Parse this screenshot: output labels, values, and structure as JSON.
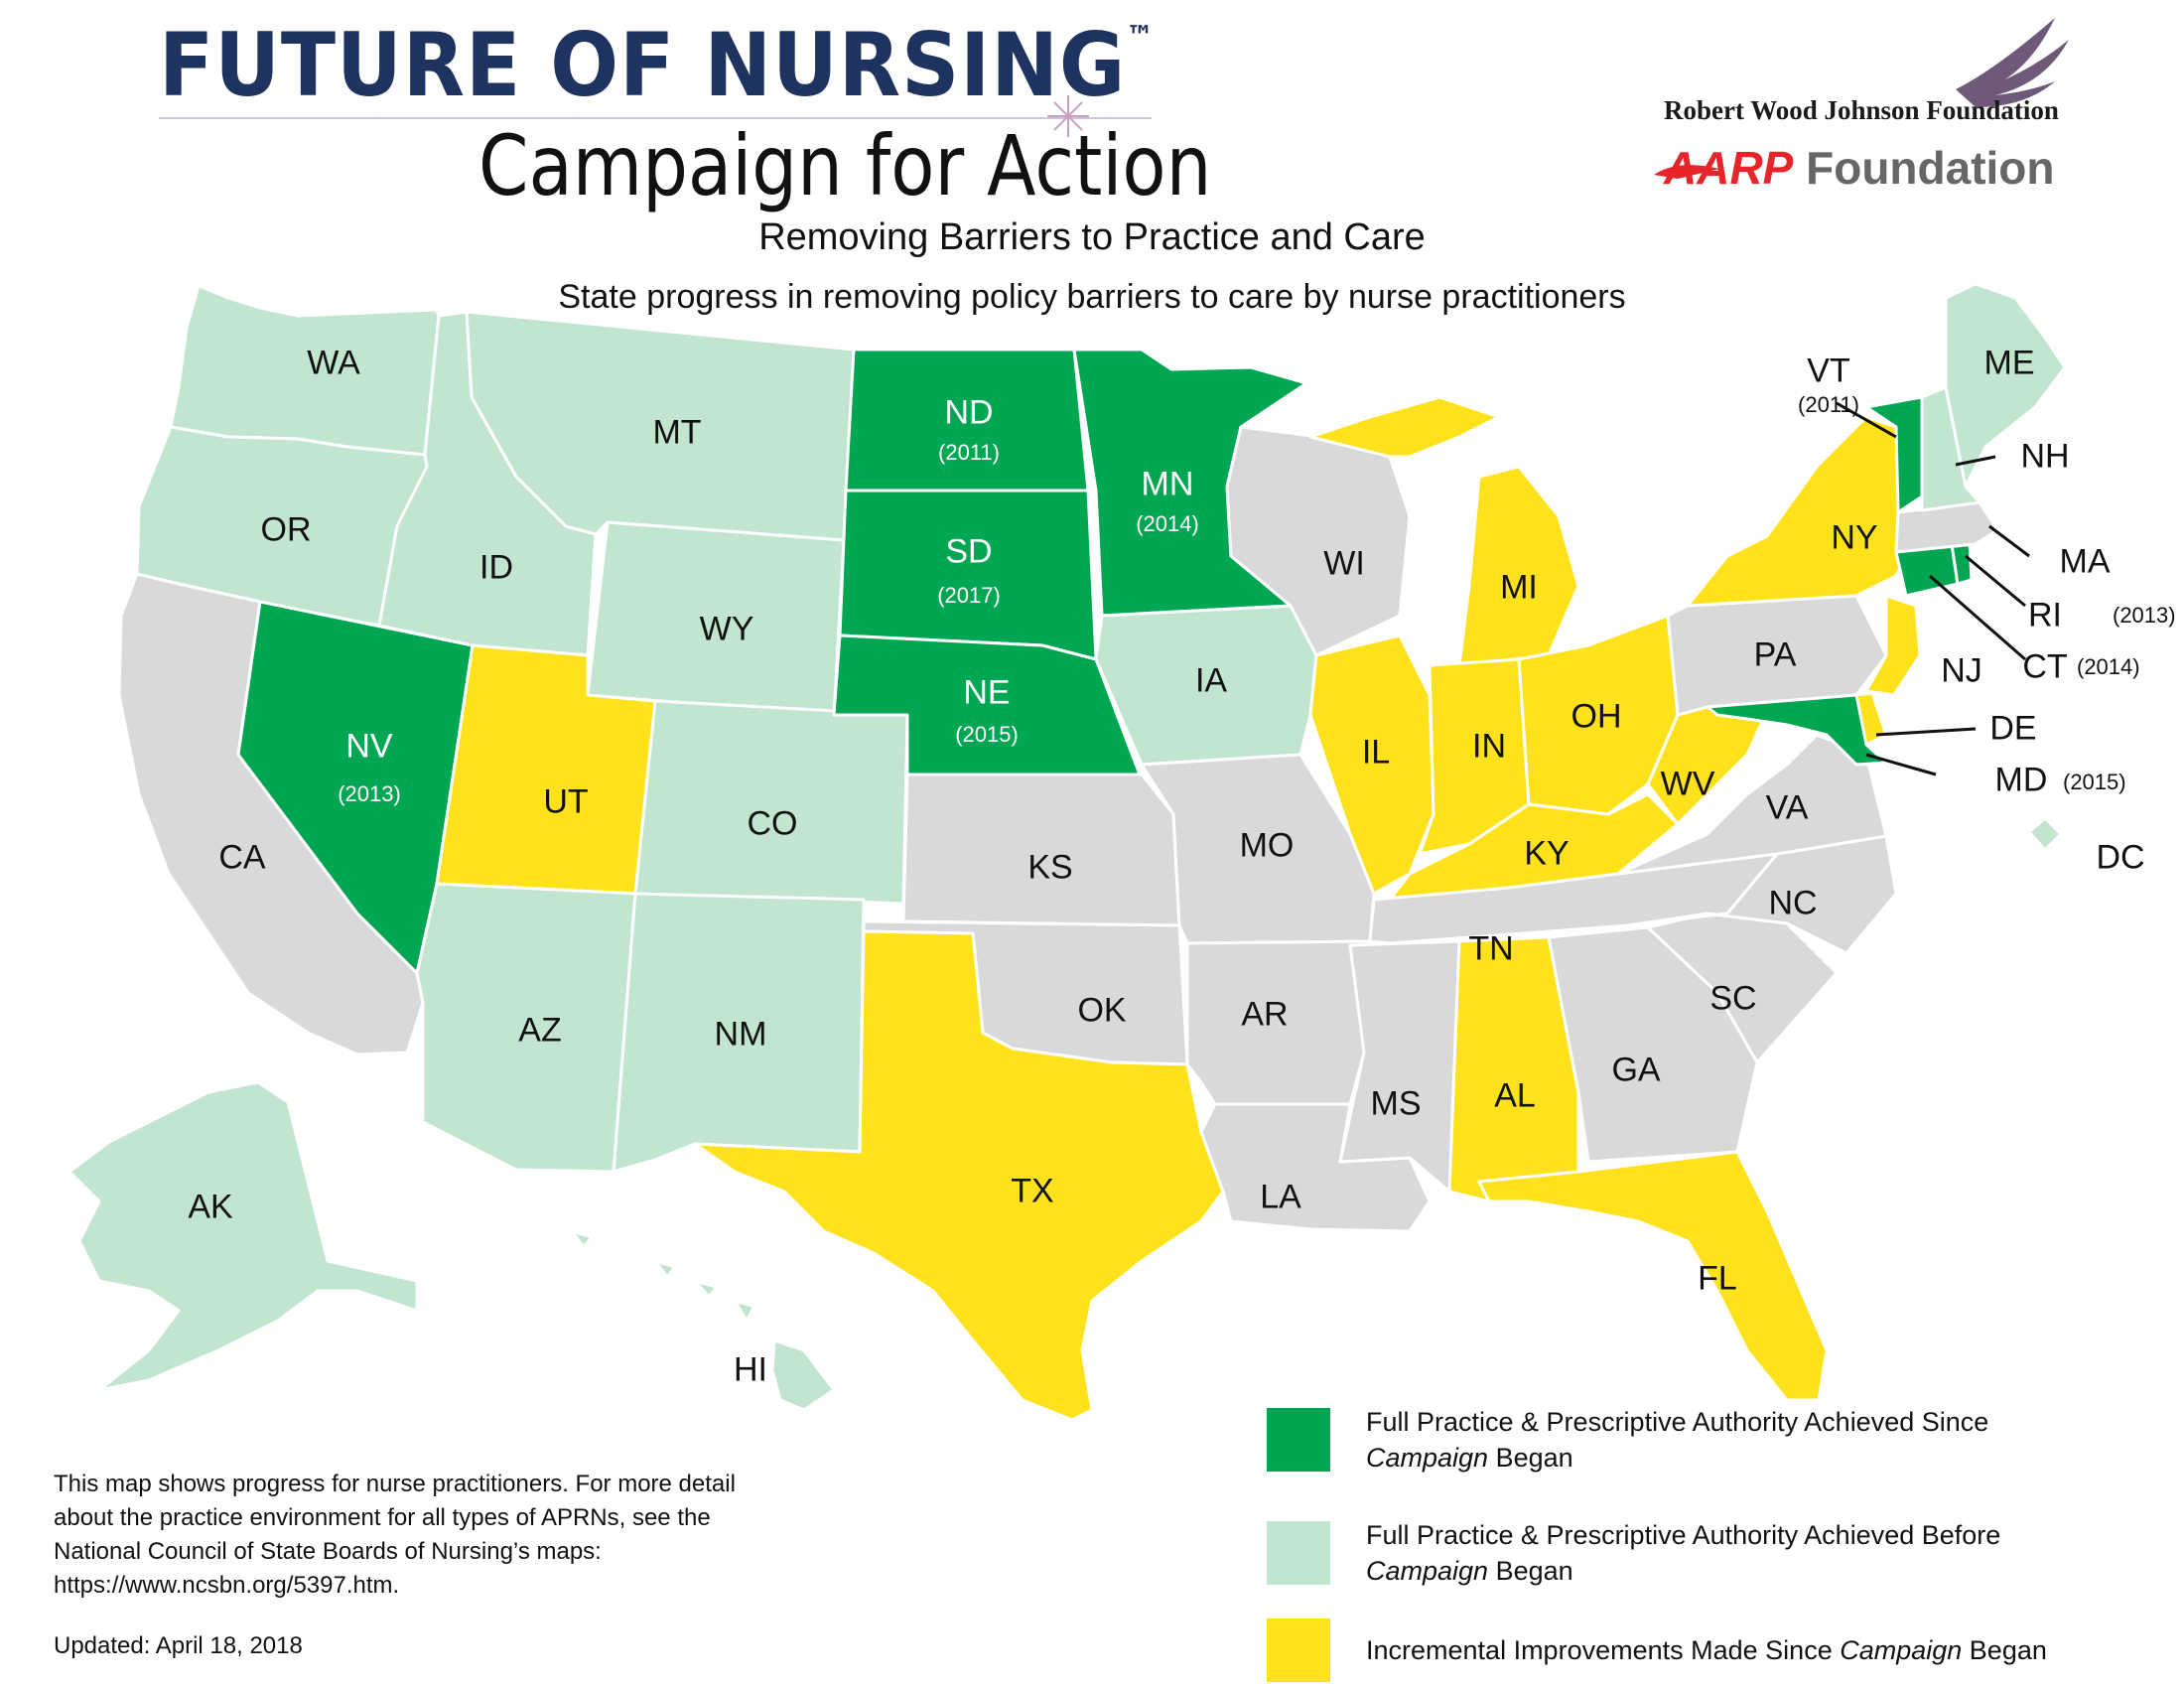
{
  "header": {
    "title": "FUTURE OF NURSING",
    "trademark": "™",
    "subtitle": "Campaign for Action",
    "sponsor_1": "Robert Wood Johnson Foundation",
    "sponsor_2_a": "AARP",
    "sponsor_2_b": " Foundation"
  },
  "map": {
    "title": "Removing Barriers to Practice and Care",
    "subtitle": "State progress in removing policy barriers to care by nurse practitioners"
  },
  "colors": {
    "full_since": "#00a651",
    "full_before": "#c2e5cf",
    "incremental": "#ffe21c",
    "none": "#d9d9dc"
  },
  "states": {
    "WA": {
      "label": "WA",
      "status": "full_before"
    },
    "OR": {
      "label": "OR",
      "status": "full_before"
    },
    "CA": {
      "label": "CA",
      "status": "none"
    },
    "ID": {
      "label": "ID",
      "status": "full_before"
    },
    "NV": {
      "label": "NV",
      "year": "(2013)",
      "status": "full_since"
    },
    "MT": {
      "label": "MT",
      "status": "full_before"
    },
    "WY": {
      "label": "WY",
      "status": "full_before"
    },
    "UT": {
      "label": "UT",
      "status": "incremental"
    },
    "CO": {
      "label": "CO",
      "status": "full_before"
    },
    "AZ": {
      "label": "AZ",
      "status": "full_before"
    },
    "NM": {
      "label": "NM",
      "status": "full_before"
    },
    "ND": {
      "label": "ND",
      "year": "(2011)",
      "status": "full_since"
    },
    "SD": {
      "label": "SD",
      "year": "(2017)",
      "status": "full_since"
    },
    "NE": {
      "label": "NE",
      "year": "(2015)",
      "status": "full_since"
    },
    "KS": {
      "label": "KS",
      "status": "none"
    },
    "OK": {
      "label": "OK",
      "status": "none"
    },
    "TX": {
      "label": "TX",
      "status": "incremental"
    },
    "MN": {
      "label": "MN",
      "year": "(2014)",
      "status": "full_since"
    },
    "IA": {
      "label": "IA",
      "status": "full_before"
    },
    "MO": {
      "label": "MO",
      "status": "none"
    },
    "AR": {
      "label": "AR",
      "status": "none"
    },
    "LA": {
      "label": "LA",
      "status": "none"
    },
    "WI": {
      "label": "WI",
      "status": "none"
    },
    "IL": {
      "label": "IL",
      "status": "incremental"
    },
    "MI": {
      "label": "MI",
      "status": "incremental"
    },
    "IN": {
      "label": "IN",
      "status": "incremental"
    },
    "OH": {
      "label": "OH",
      "status": "incremental"
    },
    "KY": {
      "label": "KY",
      "status": "incremental"
    },
    "TN": {
      "label": "TN",
      "status": "none"
    },
    "MS": {
      "label": "MS",
      "status": "none"
    },
    "AL": {
      "label": "AL",
      "status": "incremental"
    },
    "GA": {
      "label": "GA",
      "status": "none"
    },
    "FL": {
      "label": "FL",
      "status": "incremental"
    },
    "SC": {
      "label": "SC",
      "status": "none"
    },
    "NC": {
      "label": "NC",
      "status": "none"
    },
    "VA": {
      "label": "VA",
      "status": "none"
    },
    "WV": {
      "label": "WV",
      "status": "incremental"
    },
    "PA": {
      "label": "PA",
      "status": "none"
    },
    "NY": {
      "label": "NY",
      "status": "incremental"
    },
    "NJ": {
      "label": "NJ",
      "status": "incremental"
    },
    "DE": {
      "label": "DE",
      "status": "incremental"
    },
    "MD": {
      "label": "MD",
      "year": "(2015)",
      "status": "full_since"
    },
    "DC": {
      "label": "DC",
      "status": "full_before"
    },
    "CT": {
      "label": "CT",
      "year": "(2014)",
      "status": "full_since"
    },
    "RI": {
      "label": "RI",
      "year": "(2013)",
      "status": "full_since"
    },
    "MA": {
      "label": "MA",
      "status": "none"
    },
    "VT": {
      "label": "VT",
      "year": "(2011)",
      "status": "full_since"
    },
    "NH": {
      "label": "NH",
      "status": "full_before"
    },
    "ME": {
      "label": "ME",
      "status": "full_before"
    },
    "AK": {
      "label": "AK",
      "status": "full_before"
    },
    "HI": {
      "label": "HI",
      "status": "full_before"
    }
  },
  "legend": {
    "full_since_a": "Full Practice & Prescriptive Authority Achieved Since",
    "full_since_b_italic": "Campaign",
    "full_since_b_rest": " Began",
    "full_before_a": "Full Practice & Prescriptive Authority Achieved Before",
    "full_before_b_italic": "Campaign",
    "full_before_b_rest": " Began",
    "incremental_a": "Incremental Improvements Made Since ",
    "incremental_italic": "Campaign",
    "incremental_rest": " Began"
  },
  "note": "This map shows progress for nurse practitioners. For more detail about the practice environment for all types of APRNs, see the National Council of State Boards of Nursing’s maps: https://www.ncsbn.org/5397.htm.",
  "updated": "Updated: April 18, 2018"
}
